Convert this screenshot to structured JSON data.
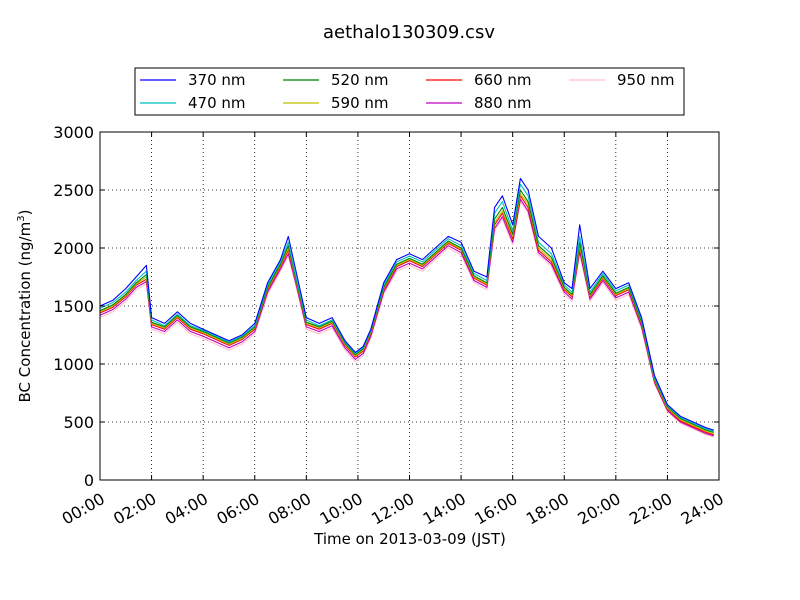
{
  "chart_data": {
    "type": "line",
    "title": "aethalo130309.csv",
    "xlabel": "Time on 2013-03-09 (JST)",
    "ylabel": "BC Concentration (ng/m",
    "ylabel_superscript": "3",
    "ylabel_suffix": ")",
    "xlim": [
      0,
      24
    ],
    "ylim": [
      0,
      3000
    ],
    "grid": true,
    "legend_position": "top",
    "x_ticks": [
      0,
      2,
      4,
      6,
      8,
      10,
      12,
      14,
      16,
      18,
      20,
      22,
      24
    ],
    "x_tick_labels": [
      "00:00",
      "02:00",
      "04:00",
      "06:00",
      "08:00",
      "10:00",
      "12:00",
      "14:00",
      "16:00",
      "18:00",
      "20:00",
      "22:00",
      "24:00"
    ],
    "y_ticks": [
      0,
      500,
      1000,
      1500,
      2000,
      2500,
      3000
    ],
    "y_tick_labels": [
      "0",
      "500",
      "1000",
      "1500",
      "2000",
      "2500",
      "3000"
    ],
    "x": [
      0,
      0.5,
      1,
      1.4,
      1.8,
      2,
      2.5,
      3,
      3.5,
      4,
      4.5,
      5,
      5.5,
      6,
      6.5,
      7,
      7.3,
      7.6,
      8,
      8.5,
      9,
      9.5,
      9.9,
      10.2,
      10.5,
      11,
      11.5,
      12,
      12.5,
      13,
      13.5,
      14,
      14.5,
      15,
      15.3,
      15.6,
      16,
      16.3,
      16.6,
      17,
      17.5,
      18,
      18.3,
      18.6,
      19,
      19.5,
      20,
      20.5,
      21,
      21.5,
      22,
      22.5,
      23,
      23.5,
      23.8
    ],
    "series": [
      {
        "name": "370 nm",
        "color": "#0000ff",
        "values": [
          1500,
          1550,
          1650,
          1750,
          1850,
          1400,
          1350,
          1450,
          1350,
          1300,
          1250,
          1200,
          1250,
          1350,
          1700,
          1900,
          2100,
          1800,
          1400,
          1350,
          1400,
          1200,
          1100,
          1150,
          1300,
          1700,
          1900,
          1950,
          1900,
          2000,
          2100,
          2050,
          1800,
          1750,
          2350,
          2450,
          2200,
          2600,
          2500,
          2100,
          2000,
          1700,
          1650,
          2200,
          1650,
          1800,
          1650,
          1700,
          1400,
          900,
          650,
          550,
          500,
          450,
          430
        ]
      },
      {
        "name": "470 nm",
        "color": "#00bfbf",
        "values": [
          1480,
          1530,
          1620,
          1720,
          1800,
          1380,
          1330,
          1430,
          1330,
          1290,
          1240,
          1190,
          1240,
          1330,
          1680,
          1880,
          2050,
          1750,
          1380,
          1330,
          1380,
          1190,
          1090,
          1140,
          1290,
          1680,
          1880,
          1930,
          1880,
          1980,
          2080,
          2020,
          1780,
          1720,
          2300,
          2400,
          2150,
          2550,
          2450,
          2050,
          1950,
          1680,
          1620,
          2100,
          1620,
          1780,
          1630,
          1680,
          1380,
          880,
          640,
          540,
          490,
          440,
          420
        ]
      },
      {
        "name": "520 nm",
        "color": "#008000",
        "values": [
          1460,
          1510,
          1600,
          1700,
          1770,
          1360,
          1320,
          1420,
          1320,
          1280,
          1230,
          1180,
          1230,
          1320,
          1660,
          1860,
          2020,
          1730,
          1360,
          1320,
          1370,
          1180,
          1080,
          1130,
          1280,
          1660,
          1860,
          1910,
          1860,
          1960,
          2060,
          2000,
          1760,
          1700,
          2250,
          2350,
          2120,
          2500,
          2400,
          2020,
          1920,
          1660,
          1600,
          2050,
          1600,
          1760,
          1610,
          1660,
          1360,
          870,
          630,
          530,
          480,
          430,
          410
        ]
      },
      {
        "name": "590 nm",
        "color": "#bfbf00",
        "values": [
          1450,
          1500,
          1590,
          1690,
          1750,
          1350,
          1310,
          1410,
          1310,
          1270,
          1220,
          1170,
          1220,
          1310,
          1650,
          1850,
          2000,
          1720,
          1350,
          1310,
          1360,
          1170,
          1070,
          1120,
          1270,
          1650,
          1850,
          1900,
          1850,
          1950,
          2050,
          1990,
          1750,
          1690,
          2220,
          2320,
          2100,
          2470,
          2380,
          2000,
          1900,
          1650,
          1590,
          2020,
          1590,
          1750,
          1600,
          1650,
          1350,
          860,
          620,
          520,
          470,
          420,
          400
        ]
      },
      {
        "name": "660 nm",
        "color": "#ff0000",
        "values": [
          1440,
          1490,
          1580,
          1680,
          1730,
          1340,
          1300,
          1400,
          1300,
          1260,
          1210,
          1160,
          1210,
          1300,
          1640,
          1840,
          1980,
          1710,
          1340,
          1300,
          1350,
          1160,
          1060,
          1110,
          1260,
          1640,
          1840,
          1890,
          1840,
          1940,
          2040,
          1980,
          1740,
          1680,
          2200,
          2300,
          2080,
          2450,
          2350,
          1980,
          1880,
          1640,
          1580,
          2000,
          1580,
          1740,
          1590,
          1640,
          1340,
          850,
          610,
          510,
          460,
          410,
          390
        ]
      },
      {
        "name": "880 nm",
        "color": "#bf00bf",
        "values": [
          1420,
          1470,
          1560,
          1660,
          1710,
          1320,
          1280,
          1380,
          1280,
          1240,
          1190,
          1140,
          1190,
          1280,
          1620,
          1820,
          1950,
          1690,
          1320,
          1280,
          1330,
          1140,
          1040,
          1090,
          1240,
          1620,
          1820,
          1870,
          1820,
          1920,
          2020,
          1960,
          1720,
          1660,
          2170,
          2270,
          2050,
          2420,
          2320,
          1960,
          1860,
          1620,
          1560,
          1970,
          1560,
          1720,
          1570,
          1620,
          1320,
          840,
          600,
          500,
          450,
          400,
          380
        ]
      },
      {
        "name": "950 nm",
        "color": "#ffc0cb",
        "values": [
          1400,
          1450,
          1540,
          1640,
          1690,
          1300,
          1260,
          1360,
          1260,
          1220,
          1170,
          1120,
          1170,
          1260,
          1600,
          1800,
          1930,
          1670,
          1300,
          1260,
          1310,
          1120,
          1020,
          1070,
          1220,
          1600,
          1800,
          1850,
          1800,
          1900,
          2000,
          1940,
          1700,
          1640,
          2150,
          2250,
          2030,
          2400,
          2300,
          1940,
          1840,
          1600,
          1540,
          1950,
          1540,
          1700,
          1550,
          1600,
          1300,
          830,
          590,
          490,
          440,
          390,
          370
        ]
      }
    ]
  }
}
